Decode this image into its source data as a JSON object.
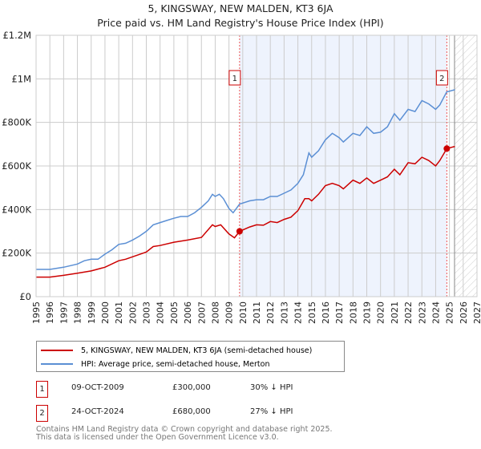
{
  "chart_data": {
    "type": "line",
    "title": "5, KINGSWAY, NEW MALDEN, KT3 6JA",
    "subtitle": "Price paid vs. HM Land Registry's House Price Index (HPI)",
    "xlim": [
      1995,
      2027
    ],
    "ylim": [
      0,
      1200000
    ],
    "x_ticks": [
      "1995",
      "1996",
      "1997",
      "1998",
      "1999",
      "2000",
      "2001",
      "2002",
      "2003",
      "2004",
      "2005",
      "2006",
      "2007",
      "2008",
      "2009",
      "2010",
      "2011",
      "2012",
      "2013",
      "2014",
      "2015",
      "2016",
      "2017",
      "2018",
      "2019",
      "2020",
      "2021",
      "2022",
      "2023",
      "2024",
      "2025",
      "2026",
      "2027"
    ],
    "y_ticks": [
      {
        "v": 0,
        "label": "£0"
      },
      {
        "v": 200000,
        "label": "£200K"
      },
      {
        "v": 400000,
        "label": "£400K"
      },
      {
        "v": 600000,
        "label": "£600K"
      },
      {
        "v": 800000,
        "label": "£800K"
      },
      {
        "v": 1000000,
        "label": "£1M"
      },
      {
        "v": 1200000,
        "label": "£1.2M"
      }
    ],
    "grid": true,
    "series": [
      {
        "name": "5, KINGSWAY, NEW MALDEN, KT3 6JA (semi-detached house)",
        "color": "#cc0000",
        "x": [
          1995,
          1996,
          1997,
          1998,
          1999,
          2000,
          2001,
          2001.5,
          2002,
          2003,
          2003.5,
          2004,
          2005,
          2005.5,
          2006,
          2007,
          2007.8,
          2008,
          2008.4,
          2009,
          2009.4,
          2009.77,
          2010.5,
          2011,
          2011.5,
          2012,
          2012.5,
          2013,
          2013.5,
          2014,
          2014.5,
          2014.8,
          2015,
          2015.5,
          2016,
          2016.5,
          2017,
          2017.3,
          2018,
          2018.5,
          2019,
          2019.5,
          2020,
          2020.5,
          2021,
          2021.4,
          2022,
          2022.5,
          2023,
          2023.5,
          2024,
          2024.3,
          2024.81,
          2025.4
        ],
        "y": [
          90000,
          90000,
          98000,
          108000,
          118000,
          135000,
          165000,
          172000,
          183000,
          205000,
          230000,
          235000,
          250000,
          255000,
          260000,
          272000,
          330000,
          322000,
          330000,
          288000,
          270000,
          300000,
          320000,
          330000,
          328000,
          345000,
          340000,
          355000,
          365000,
          395000,
          450000,
          450000,
          440000,
          470000,
          510000,
          520000,
          510000,
          495000,
          535000,
          520000,
          545000,
          520000,
          535000,
          550000,
          585000,
          560000,
          615000,
          610000,
          640000,
          625000,
          600000,
          625000,
          680000,
          690000
        ]
      },
      {
        "name": "HPI: Average price, semi-detached house, Merton",
        "color": "#5b8fd4",
        "x": [
          1995,
          1996,
          1997,
          1998,
          1998.5,
          1999,
          1999.5,
          2000,
          2000.5,
          2001,
          2001.5,
          2002,
          2002.5,
          2003,
          2003.5,
          2004,
          2004.5,
          2005,
          2005.5,
          2006,
          2006.5,
          2007,
          2007.5,
          2007.8,
          2008,
          2008.3,
          2008.6,
          2009,
          2009.3,
          2009.77,
          2010.5,
          2011,
          2011.5,
          2012,
          2012.5,
          2013,
          2013.5,
          2014,
          2014.4,
          2014.8,
          2015,
          2015.5,
          2016,
          2016.5,
          2017,
          2017.3,
          2018,
          2018.5,
          2019,
          2019.5,
          2020,
          2020.5,
          2021,
          2021.4,
          2022,
          2022.5,
          2023,
          2023.5,
          2024,
          2024.3,
          2024.8,
          2025.4
        ],
        "y": [
          125000,
          125000,
          135000,
          150000,
          165000,
          172000,
          172000,
          195000,
          215000,
          240000,
          245000,
          260000,
          278000,
          300000,
          330000,
          340000,
          350000,
          360000,
          368000,
          368000,
          385000,
          410000,
          440000,
          470000,
          460000,
          470000,
          450000,
          405000,
          385000,
          425000,
          440000,
          445000,
          445000,
          460000,
          460000,
          475000,
          490000,
          520000,
          560000,
          660000,
          640000,
          670000,
          720000,
          750000,
          730000,
          710000,
          750000,
          740000,
          780000,
          750000,
          755000,
          780000,
          840000,
          810000,
          860000,
          850000,
          900000,
          885000,
          860000,
          880000,
          940000,
          950000
        ]
      }
    ],
    "sales": [
      {
        "label": "1",
        "x": 2009.77,
        "date": "09-OCT-2009",
        "price": "£300,000",
        "price_value": 300000,
        "hpi": "30% ↓ HPI"
      },
      {
        "label": "2",
        "x": 2024.81,
        "date": "24-OCT-2024",
        "price": "£680,000",
        "price_value": 680000,
        "hpi": "27% ↓ HPI"
      }
    ],
    "forecast_start": 2025.37,
    "legend_placement": "bottom"
  },
  "footer": {
    "line1": "Contains HM Land Registry data © Crown copyright and database right 2025.",
    "line2": "This data is licensed under the Open Government Licence v3.0."
  }
}
